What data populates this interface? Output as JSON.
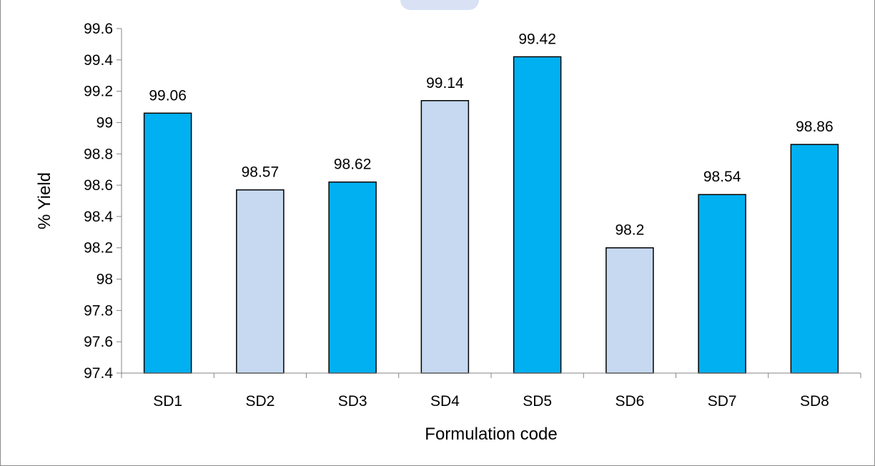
{
  "chart_data": {
    "type": "bar",
    "title": "",
    "xlabel": "Formulation code",
    "ylabel": "% Yield",
    "categories": [
      "SD1",
      "SD2",
      "SD3",
      "SD4",
      "SD5",
      "SD6",
      "SD7",
      "SD8"
    ],
    "values": [
      99.06,
      98.57,
      98.62,
      99.14,
      99.42,
      98.2,
      98.54,
      98.86
    ],
    "data_labels": [
      "99.06",
      "98.57",
      "98.62",
      "99.14",
      "99.42",
      "98.2",
      "98.54",
      "98.86"
    ],
    "ylim": [
      97.4,
      99.6
    ],
    "yticks": [
      97.4,
      97.6,
      97.8,
      98,
      98.2,
      98.4,
      98.6,
      98.8,
      99,
      99.2,
      99.4,
      99.6
    ],
    "ytick_labels": [
      "97.4",
      "97.6",
      "97.8",
      "98",
      "98.2",
      "98.4",
      "98.6",
      "98.8",
      "99",
      "99.2",
      "99.4",
      "99.6"
    ],
    "bar_colors": [
      "#00b0f0",
      "#c6d9f1",
      "#00b0f0",
      "#c6d9f1",
      "#00b0f0",
      "#c6d9f1",
      "#00b0f0",
      "#00b0f0"
    ],
    "grid": false,
    "legend": "none"
  }
}
